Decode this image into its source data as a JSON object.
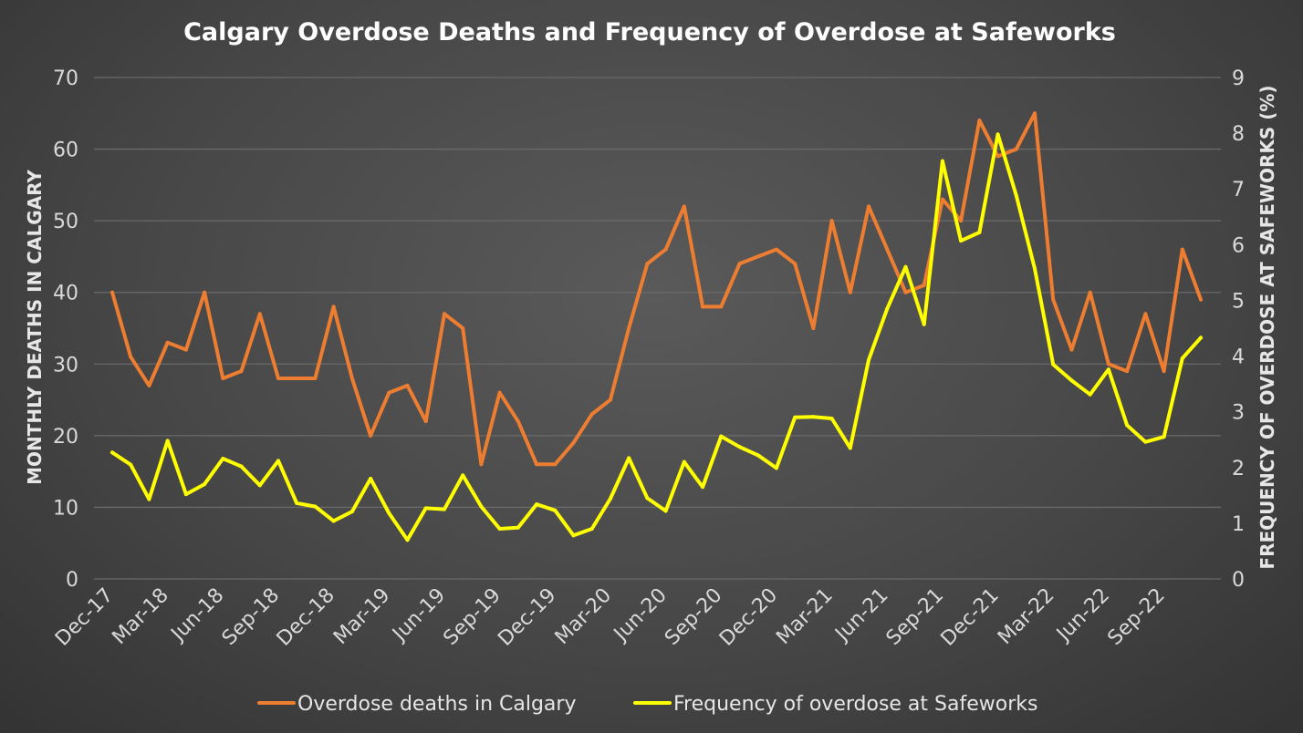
{
  "chart_data": {
    "type": "line",
    "title": "Calgary Overdose Deaths and Frequency of Overdose at Safeworks",
    "ylabel": "MONTHLY DEATHS IN CALGARY",
    "y2label": "FREQUENCY OF OVERDOSE AT SAFEWORKS (%)",
    "ylim": [
      0,
      70
    ],
    "y2lim": [
      0,
      9
    ],
    "yticks": [
      0,
      10,
      20,
      30,
      40,
      50,
      60,
      70
    ],
    "y2ticks": [
      0,
      1,
      2,
      3,
      4,
      5,
      6,
      7,
      8,
      9
    ],
    "grid": true,
    "legend_position": "bottom",
    "x_tick_labels": [
      "Dec-17",
      "Mar-18",
      "Jun-18",
      "Sep-18",
      "Dec-18",
      "Mar-19",
      "Jun-19",
      "Sep-19",
      "Dec-19",
      "Mar-20",
      "Jun-20",
      "Sep-20",
      "Dec-20",
      "Mar-21",
      "Jun-21",
      "Sep-21",
      "Dec-21",
      "Mar-22",
      "Jun-22",
      "Sep-22"
    ],
    "x": [
      "Dec-17",
      "Jan-18",
      "Feb-18",
      "Mar-18",
      "Apr-18",
      "May-18",
      "Jun-18",
      "Jul-18",
      "Aug-18",
      "Sep-18",
      "Oct-18",
      "Nov-18",
      "Dec-18",
      "Jan-19",
      "Feb-19",
      "Mar-19",
      "Apr-19",
      "May-19",
      "Jun-19",
      "Jul-19",
      "Aug-19",
      "Sep-19",
      "Oct-19",
      "Nov-19",
      "Dec-19",
      "Jan-20",
      "Feb-20",
      "Mar-20",
      "Apr-20",
      "May-20",
      "Jun-20",
      "Jul-20",
      "Aug-20",
      "Sep-20",
      "Oct-20",
      "Nov-20",
      "Dec-20",
      "Jan-21",
      "Feb-21",
      "Mar-21",
      "Apr-21",
      "May-21",
      "Jun-21",
      "Jul-21",
      "Aug-21",
      "Sep-21",
      "Oct-21",
      "Nov-21",
      "Dec-21",
      "Jan-22",
      "Feb-22",
      "Mar-22",
      "Apr-22",
      "May-22",
      "Jun-22",
      "Jul-22",
      "Aug-22",
      "Sep-22",
      "Oct-22",
      "Nov-22"
    ],
    "series": [
      {
        "name": "Overdose deaths in Calgary",
        "axis": "left",
        "color": "#ed7d31",
        "values": [
          40,
          31,
          27,
          33,
          32,
          40,
          28,
          29,
          37,
          28,
          28,
          28,
          38,
          28,
          20,
          26,
          27,
          22,
          37,
          35,
          16,
          26,
          22,
          16,
          16,
          19,
          23,
          25,
          35,
          44,
          46,
          52,
          38,
          38,
          44,
          45,
          46,
          44,
          35,
          50,
          40,
          52,
          46,
          40,
          41,
          53,
          50,
          64,
          59,
          60,
          65,
          39,
          32,
          40,
          30,
          29,
          37,
          29,
          46,
          39
        ]
      },
      {
        "name": "Frequency of overdose at Safeworks",
        "axis": "right",
        "color": "#ffff00",
        "values": [
          2.27,
          2.05,
          1.43,
          2.48,
          1.52,
          1.7,
          2.16,
          2.02,
          1.68,
          2.12,
          1.36,
          1.3,
          1.04,
          1.21,
          1.8,
          1.18,
          0.7,
          1.27,
          1.25,
          1.86,
          1.3,
          0.9,
          0.92,
          1.34,
          1.23,
          0.78,
          0.9,
          1.44,
          2.17,
          1.45,
          1.22,
          2.1,
          1.65,
          2.56,
          2.37,
          2.22,
          1.99,
          2.9,
          2.91,
          2.88,
          2.35,
          3.93,
          4.85,
          5.6,
          4.57,
          7.5,
          6.07,
          6.22,
          7.98,
          6.88,
          5.57,
          3.85,
          3.56,
          3.31,
          3.76,
          2.76,
          2.46,
          2.55,
          3.96,
          4.33
        ]
      }
    ]
  }
}
